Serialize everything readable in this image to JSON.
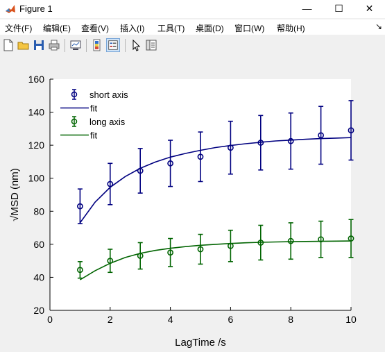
{
  "window": {
    "title": "Figure 1",
    "minimize_glyph": "—",
    "maximize_glyph": "☐",
    "close_glyph": "✕"
  },
  "menu": {
    "items": [
      {
        "label": "文件(F)"
      },
      {
        "label": "编辑(E)"
      },
      {
        "label": "查看(V)"
      },
      {
        "label": "插入(I)"
      },
      {
        "label": "工具(T)"
      },
      {
        "label": "桌面(D)"
      },
      {
        "label": "窗口(W)"
      },
      {
        "label": "帮助(H)"
      }
    ],
    "overflow_glyph": "↘"
  },
  "toolbar": {
    "buttons": [
      {
        "icon": "new-figure-icon"
      },
      {
        "icon": "open-file-icon"
      },
      {
        "icon": "save-icon"
      },
      {
        "icon": "print-icon"
      },
      {
        "icon": "link-plot-icon"
      },
      {
        "icon": "colorbar-icon"
      },
      {
        "icon": "legend-icon"
      },
      {
        "icon": "pointer-icon"
      },
      {
        "icon": "property-inspector-icon"
      }
    ]
  },
  "colors": {
    "short_axis": "#000080",
    "long_axis": "#006400",
    "plot_bg": "#ffffff",
    "figure_bg": "#f0f0f0"
  },
  "chart_data": {
    "type": "line",
    "xlabel": "LagTime /s",
    "ylabel_display": "√MSD (nm)",
    "xlim": [
      0,
      10
    ],
    "ylim": [
      20,
      160
    ],
    "xticks": [
      0,
      2,
      4,
      6,
      8,
      10
    ],
    "yticks": [
      20,
      40,
      60,
      80,
      100,
      120,
      140,
      160
    ],
    "grid": false,
    "legend_position": "top-left",
    "series": [
      {
        "name": "short axis",
        "kind": "errorbar",
        "color": "#000080",
        "x": [
          1,
          2,
          3,
          4,
          5,
          6,
          7,
          8,
          9,
          10
        ],
        "y": [
          83,
          96.5,
          104.5,
          109,
          113,
          118.5,
          121.5,
          122.5,
          126,
          129
        ],
        "err": [
          10.5,
          12.5,
          13.5,
          14,
          15,
          16,
          16.5,
          17,
          17.5,
          18
        ]
      },
      {
        "name": "fit",
        "kind": "line",
        "color": "#000080",
        "x": [
          1,
          1.5,
          2,
          2.5,
          3,
          3.5,
          4,
          4.5,
          5,
          5.5,
          6,
          6.5,
          7,
          7.5,
          8,
          8.5,
          9,
          9.5,
          10
        ],
        "y": [
          73,
          85.5,
          94.5,
          101,
          106,
          109.8,
          112.8,
          115,
          116.9,
          118.6,
          119.8,
          120.9,
          121.8,
          122.6,
          123.1,
          123.6,
          124,
          124.3,
          124.6
        ]
      },
      {
        "name": "long axis",
        "kind": "errorbar",
        "color": "#006400",
        "x": [
          1,
          2,
          3,
          4,
          5,
          6,
          7,
          8,
          9,
          10
        ],
        "y": [
          44.5,
          50,
          53,
          55,
          57,
          59,
          61,
          62,
          63,
          63.5
        ],
        "err": [
          5,
          7,
          8,
          8.5,
          9,
          9.5,
          10.5,
          11,
          11,
          11.5
        ]
      },
      {
        "name": "fit",
        "kind": "line",
        "color": "#006400",
        "x": [
          1,
          1.5,
          2,
          2.5,
          3,
          3.5,
          4,
          4.5,
          5,
          5.5,
          6,
          6.5,
          7,
          7.5,
          8,
          8.5,
          9,
          9.5,
          10
        ],
        "y": [
          38.5,
          44,
          48.5,
          52,
          54.5,
          56.3,
          57.6,
          58.6,
          59.4,
          60,
          60.5,
          60.9,
          61.2,
          61.4,
          61.6,
          61.7,
          61.8,
          61.9,
          62
        ]
      }
    ]
  }
}
